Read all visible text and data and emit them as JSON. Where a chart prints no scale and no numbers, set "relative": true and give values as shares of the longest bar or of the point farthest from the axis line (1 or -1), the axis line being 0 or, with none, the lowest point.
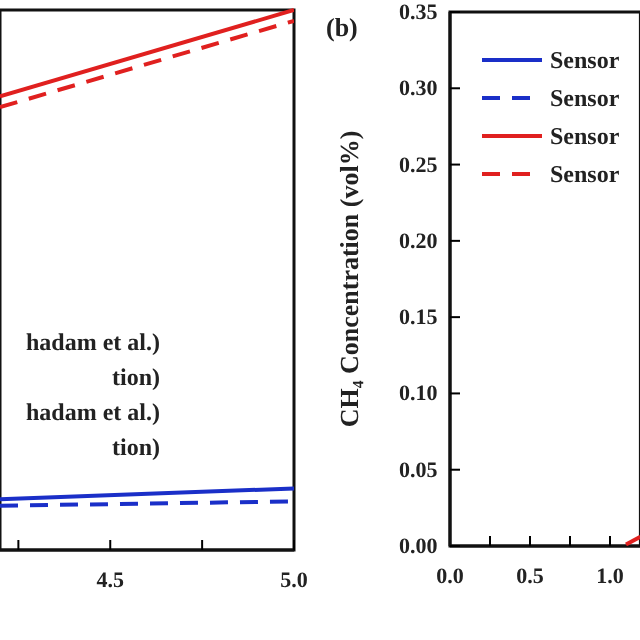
{
  "chart_data": [
    {
      "type": "line",
      "relative": true,
      "xlim": [
        4.2,
        5.0
      ],
      "xticks": [
        {
          "value": 4.25,
          "label": null
        },
        4.5,
        {
          "value": 4.75,
          "label": null
        },
        {
          "value": 5,
          "label": "5.0"
        }
      ],
      "legend": false,
      "annotations": [
        "hadam et al.)",
        "tion)",
        "hadam et al.)",
        "tion)"
      ],
      "series": [
        {
          "color": "#e0201f",
          "line_style": "solid",
          "x": [
            4.2,
            5.0
          ],
          "values": [
            0.84,
            1
          ]
        },
        {
          "color": "#e0201f",
          "line_style": "dashed",
          "x": [
            4.2,
            5.0
          ],
          "values": [
            0.82,
            0.98
          ]
        },
        {
          "color": "#1a2fc8",
          "line_style": "solid",
          "x": [
            4.2,
            5.0
          ],
          "values": [
            0.094,
            0.114
          ]
        },
        {
          "color": "#1a2fc8",
          "line_style": "dashed",
          "x": [
            4.2,
            5.0
          ],
          "values": [
            0.082,
            0.09
          ]
        }
      ]
    },
    {
      "type": "line",
      "ylabel": "CH₄ Concentration (vol%)",
      "xlim": [
        0,
        1.19
      ],
      "ylim": [
        0,
        0.35
      ],
      "xticks": [
        {
          "value": 0,
          "label": "0.0"
        },
        {
          "value": 0.25,
          "label": null
        },
        0.5,
        {
          "value": 0.75,
          "label": null
        },
        {
          "value": 1,
          "label": "1.0"
        }
      ],
      "yticks": [
        {
          "value": 0,
          "label": "0.00"
        },
        0.05,
        {
          "value": 0.1,
          "label": "0.10"
        },
        0.15,
        {
          "value": 0.2,
          "label": "0.20"
        },
        0.25,
        {
          "value": 0.3,
          "label": "0.30"
        },
        0.35
      ],
      "legend": "top left",
      "annotations": [
        "(b)"
      ],
      "series": [
        {
          "name": "Sensor",
          "color": "#1a2fc8",
          "line_style": "solid"
        },
        {
          "name": "Sensor",
          "color": "#1a2fc8",
          "line_style": "dashed"
        },
        {
          "name": "Sensor",
          "color": "#e0201f",
          "line_style": "solid",
          "x": [
            1.1,
            1.19
          ],
          "values": [
            0.001,
            0.006
          ]
        },
        {
          "name": "Sensor",
          "color": "#e0201f",
          "line_style": "dashed"
        }
      ]
    }
  ]
}
